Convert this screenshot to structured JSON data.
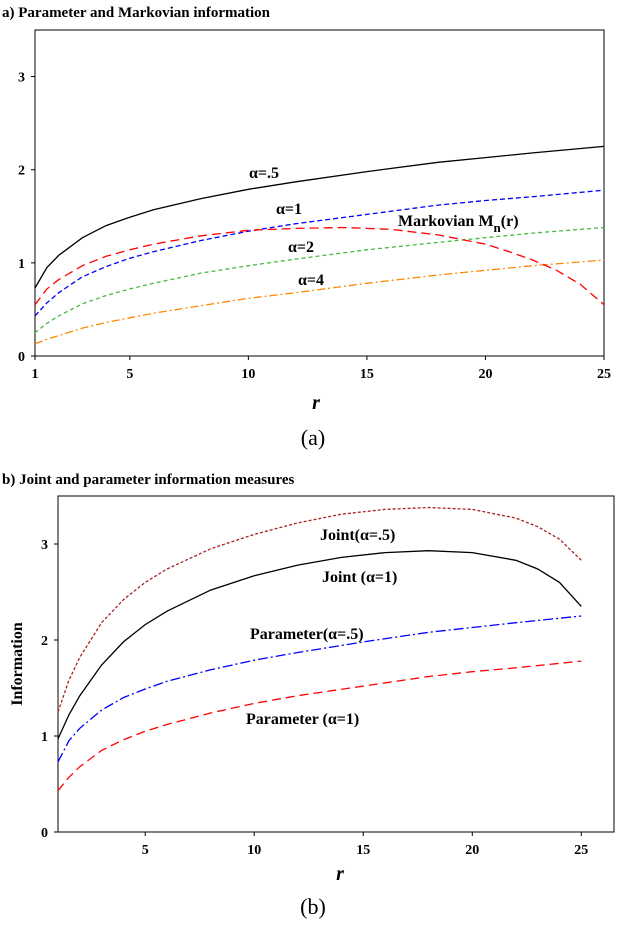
{
  "chart_data": [
    {
      "type": "line",
      "title": "a) Parameter and Markovian information",
      "xlabel": "r",
      "ylabel": "",
      "caption": "(a)",
      "xlim": [
        1,
        25
      ],
      "ylim": [
        0,
        3.5
      ],
      "xticks": [
        "1",
        "5",
        "10",
        "15",
        "20",
        "25"
      ],
      "yticks": [
        "0",
        "1",
        "2",
        "3"
      ],
      "grid": false,
      "legend": "none",
      "series": [
        {
          "label": "α=.5",
          "color": "#000000",
          "dash": "",
          "x": [
            1,
            1.5,
            2,
            3,
            4,
            5,
            6,
            8,
            10,
            12,
            15,
            18,
            20,
            22,
            25
          ],
          "y": [
            0.73,
            0.95,
            1.08,
            1.27,
            1.4,
            1.49,
            1.57,
            1.69,
            1.79,
            1.87,
            1.98,
            2.08,
            2.13,
            2.18,
            2.25
          ]
        },
        {
          "label": "α=1",
          "color": "#0000ff",
          "dash": "5,3",
          "x": [
            1,
            1.5,
            2,
            3,
            4,
            5,
            6,
            8,
            10,
            12,
            15,
            18,
            20,
            22,
            25
          ],
          "y": [
            0.43,
            0.57,
            0.68,
            0.85,
            0.96,
            1.05,
            1.12,
            1.24,
            1.34,
            1.42,
            1.52,
            1.62,
            1.67,
            1.71,
            1.78
          ]
        },
        {
          "label": "α=2",
          "color": "#44bb44",
          "dash": "4,3",
          "x": [
            1,
            1.5,
            2,
            3,
            4,
            5,
            6,
            8,
            10,
            12,
            15,
            18,
            20,
            22,
            25
          ],
          "y": [
            0.25,
            0.35,
            0.43,
            0.56,
            0.65,
            0.72,
            0.78,
            0.89,
            0.97,
            1.04,
            1.14,
            1.22,
            1.27,
            1.32,
            1.38
          ]
        },
        {
          "label": "α=4",
          "color": "#ff8800",
          "dash": "8,3,2,3",
          "x": [
            1,
            1.5,
            2,
            3,
            4,
            5,
            6,
            8,
            10,
            12,
            15,
            18,
            20,
            22,
            25
          ],
          "y": [
            0.13,
            0.18,
            0.22,
            0.3,
            0.36,
            0.41,
            0.46,
            0.54,
            0.62,
            0.68,
            0.78,
            0.87,
            0.92,
            0.97,
            1.03
          ]
        },
        {
          "label": "Markovian M",
          "label_sub": "n",
          "label_tail": "(r)",
          "color": "#ff0000",
          "dash": "9,5",
          "x": [
            1,
            1.5,
            2,
            3,
            4,
            5,
            6,
            8,
            10,
            12,
            14,
            16,
            18,
            20,
            21,
            22,
            23,
            24,
            25
          ],
          "y": [
            0.55,
            0.72,
            0.82,
            0.97,
            1.07,
            1.14,
            1.2,
            1.29,
            1.35,
            1.37,
            1.38,
            1.36,
            1.3,
            1.2,
            1.12,
            1.03,
            0.92,
            0.77,
            0.55
          ]
        }
      ]
    },
    {
      "type": "line",
      "title": "b) Joint and parameter information measures",
      "xlabel": "r",
      "ylabel": "Information",
      "caption": "(b)",
      "xlim": [
        1,
        26.5
      ],
      "ylim": [
        0,
        3.5
      ],
      "xticks": [
        "5",
        "10",
        "15",
        "20",
        "25"
      ],
      "yticks": [
        "0",
        "1",
        "2",
        "3"
      ],
      "grid": false,
      "legend": "none",
      "series": [
        {
          "label": "Joint(α=.5)",
          "color": "#aa2222",
          "dash": "3,2",
          "x": [
            1,
            1.5,
            2,
            3,
            4,
            5,
            6,
            8,
            10,
            12,
            14,
            16,
            18,
            20,
            22,
            23,
            24,
            25
          ],
          "y": [
            1.25,
            1.58,
            1.82,
            2.18,
            2.42,
            2.6,
            2.74,
            2.95,
            3.1,
            3.22,
            3.31,
            3.36,
            3.38,
            3.36,
            3.27,
            3.18,
            3.05,
            2.83
          ]
        },
        {
          "label": "Joint (α=1)",
          "color": "#000000",
          "dash": "",
          "x": [
            1,
            1.5,
            2,
            3,
            4,
            5,
            6,
            8,
            10,
            12,
            14,
            16,
            18,
            20,
            22,
            23,
            24,
            25
          ],
          "y": [
            0.97,
            1.22,
            1.42,
            1.74,
            1.98,
            2.16,
            2.3,
            2.52,
            2.67,
            2.78,
            2.86,
            2.91,
            2.93,
            2.91,
            2.83,
            2.74,
            2.6,
            2.35
          ]
        },
        {
          "label": "Parameter(α=.5)",
          "color": "#0000ff",
          "dash": "10,3,2,3",
          "x": [
            1,
            1.5,
            2,
            3,
            4,
            5,
            6,
            8,
            10,
            12,
            15,
            18,
            20,
            22,
            25
          ],
          "y": [
            0.73,
            0.95,
            1.08,
            1.27,
            1.4,
            1.49,
            1.57,
            1.69,
            1.79,
            1.87,
            1.98,
            2.08,
            2.13,
            2.18,
            2.25
          ]
        },
        {
          "label": "Parameter (α=1)",
          "color": "#ff0000",
          "dash": "9,5",
          "x": [
            1,
            1.5,
            2,
            3,
            4,
            5,
            6,
            8,
            10,
            12,
            15,
            18,
            20,
            22,
            25
          ],
          "y": [
            0.43,
            0.57,
            0.68,
            0.85,
            0.96,
            1.05,
            1.12,
            1.24,
            1.34,
            1.42,
            1.52,
            1.62,
            1.67,
            1.71,
            1.78
          ]
        }
      ]
    }
  ]
}
